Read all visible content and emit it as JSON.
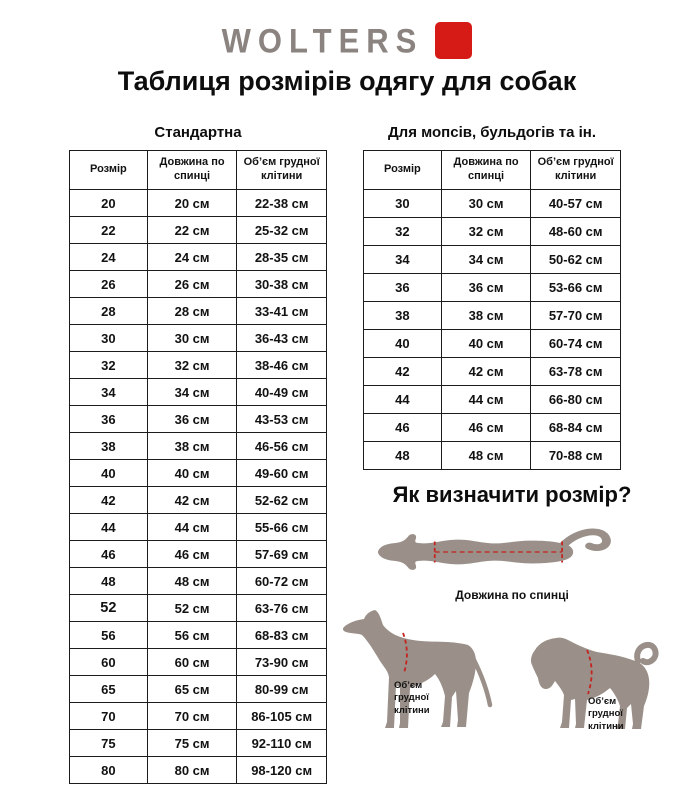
{
  "logo": {
    "brand": "WOLTERS",
    "text_color": "#8b8380",
    "accent_color": "#d61b17"
  },
  "title": "Таблиця розмірів одягу для собак",
  "tables": {
    "standard": {
      "subtitle": "Стандартна",
      "headers": [
        "Розмір",
        "Довжина по спинці",
        "Об’єм грудної клітини"
      ],
      "emphasized_size": "52",
      "rows": [
        [
          "20",
          "20 см",
          "22-38 см"
        ],
        [
          "22",
          "22 см",
          "25-32 см"
        ],
        [
          "24",
          "24 см",
          "28-35 см"
        ],
        [
          "26",
          "26 см",
          "30-38 см"
        ],
        [
          "28",
          "28 см",
          "33-41 см"
        ],
        [
          "30",
          "30 см",
          "36-43 см"
        ],
        [
          "32",
          "32 см",
          "38-46 см"
        ],
        [
          "34",
          "34 см",
          "40-49 см"
        ],
        [
          "36",
          "36 см",
          "43-53 см"
        ],
        [
          "38",
          "38 см",
          "46-56 см"
        ],
        [
          "40",
          "40 см",
          "49-60 см"
        ],
        [
          "42",
          "42 см",
          "52-62 см"
        ],
        [
          "44",
          "44 см",
          "55-66 см"
        ],
        [
          "46",
          "46 см",
          "57-69 см"
        ],
        [
          "48",
          "48 см",
          "60-72 см"
        ],
        [
          "52",
          "52 см",
          "63-76 см"
        ],
        [
          "56",
          "56 см",
          "68-83 см"
        ],
        [
          "60",
          "60 см",
          "73-90 см"
        ],
        [
          "65",
          "65 см",
          "80-99 см"
        ],
        [
          "70",
          "70 см",
          "86-105 см"
        ],
        [
          "75",
          "75 см",
          "92-110 см"
        ],
        [
          "80",
          "80 см",
          "98-120 см"
        ]
      ]
    },
    "flat_faced": {
      "subtitle": "Для мопсів, бульдогів та ін.",
      "headers": [
        "Розмір",
        "Довжина по спинці",
        "Об’єм грудної клітини"
      ],
      "rows": [
        [
          "30",
          "30 см",
          "40-57 см"
        ],
        [
          "32",
          "32 см",
          "48-60 см"
        ],
        [
          "34",
          "34 см",
          "50-62 см"
        ],
        [
          "36",
          "36 см",
          "53-66 см"
        ],
        [
          "38",
          "38 см",
          "57-70 см"
        ],
        [
          "40",
          "40 см",
          "60-74 см"
        ],
        [
          "42",
          "42 см",
          "63-78 см"
        ],
        [
          "44",
          "44 см",
          "66-80 см"
        ],
        [
          "46",
          "46 см",
          "68-84 см"
        ],
        [
          "48",
          "48 см",
          "70-88 см"
        ]
      ]
    }
  },
  "guide": {
    "heading": "Як визначити розмір?",
    "back_length_label": "Довжина по спинці",
    "chest_label": "Об’єм\nгрудної\nклітини",
    "silhouette_color": "#9a9089",
    "measure_line_color": "#c4231f"
  }
}
